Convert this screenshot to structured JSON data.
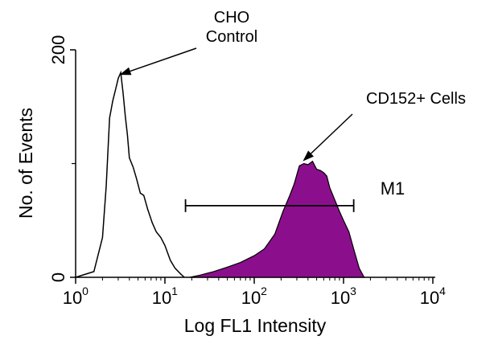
{
  "chart_data": {
    "type": "area",
    "xlabel": "Log FL1 Intensity",
    "ylabel": "No. of Events",
    "xscale": "log",
    "xlim": [
      1,
      10000
    ],
    "ylim": [
      0,
      200
    ],
    "x_ticks": [
      {
        "base": "10",
        "exp": "0",
        "value": 1
      },
      {
        "base": "10",
        "exp": "1",
        "value": 10
      },
      {
        "base": "10",
        "exp": "2",
        "value": 100
      },
      {
        "base": "10",
        "exp": "3",
        "value": 1000
      },
      {
        "base": "10",
        "exp": "4",
        "value": 10000
      }
    ],
    "y_ticks": [
      {
        "label": "0",
        "value": 0
      },
      {
        "label": "200",
        "value": 200
      }
    ],
    "y_minor_ticks": [
      100
    ],
    "series": [
      {
        "name": "CHO Control",
        "style": "outline",
        "color": "#000000",
        "x": [
          1.0,
          1.6,
          2.0,
          2.2,
          2.4,
          2.6,
          2.8,
          3.0,
          3.2,
          3.4,
          3.6,
          3.8,
          4.0,
          4.4,
          4.8,
          5.3,
          5.8,
          6.4,
          7.2,
          8.0,
          9.0,
          10.0,
          11.5,
          13.0,
          15.0,
          16.5
        ],
        "y": [
          0,
          5,
          35,
          80,
          140,
          155,
          165,
          175,
          180,
          162,
          142,
          125,
          105,
          97,
          87,
          74,
          72,
          60,
          48,
          40,
          35,
          28,
          15,
          8,
          3,
          0
        ]
      },
      {
        "name": "CD152+ Cells",
        "style": "filled",
        "color": "#8b0f8c",
        "x": [
          19,
          25,
          35,
          50,
          70,
          100,
          130,
          170,
          210,
          250,
          280,
          320,
          360,
          400,
          450,
          500,
          550,
          600,
          650,
          700,
          800,
          900,
          1000,
          1150,
          1300,
          1500,
          1700
        ],
        "y": [
          0,
          2,
          5,
          9,
          13,
          19,
          25,
          38,
          58,
          72,
          82,
          98,
          100,
          99,
          102,
          95,
          94,
          92,
          89,
          79,
          68,
          58,
          50,
          40,
          25,
          8,
          0
        ]
      }
    ],
    "markers": [
      {
        "label": "M1",
        "x_start": 17,
        "x_end": 1300,
        "y": 63
      }
    ],
    "annotations": [
      {
        "text_lines": [
          "CHO",
          "Control"
        ],
        "points_to_x": 3.1,
        "points_to_y": 178
      },
      {
        "text_lines": [
          "CD152+ Cells"
        ],
        "points_to_x": 350,
        "points_to_y": 102
      }
    ]
  }
}
